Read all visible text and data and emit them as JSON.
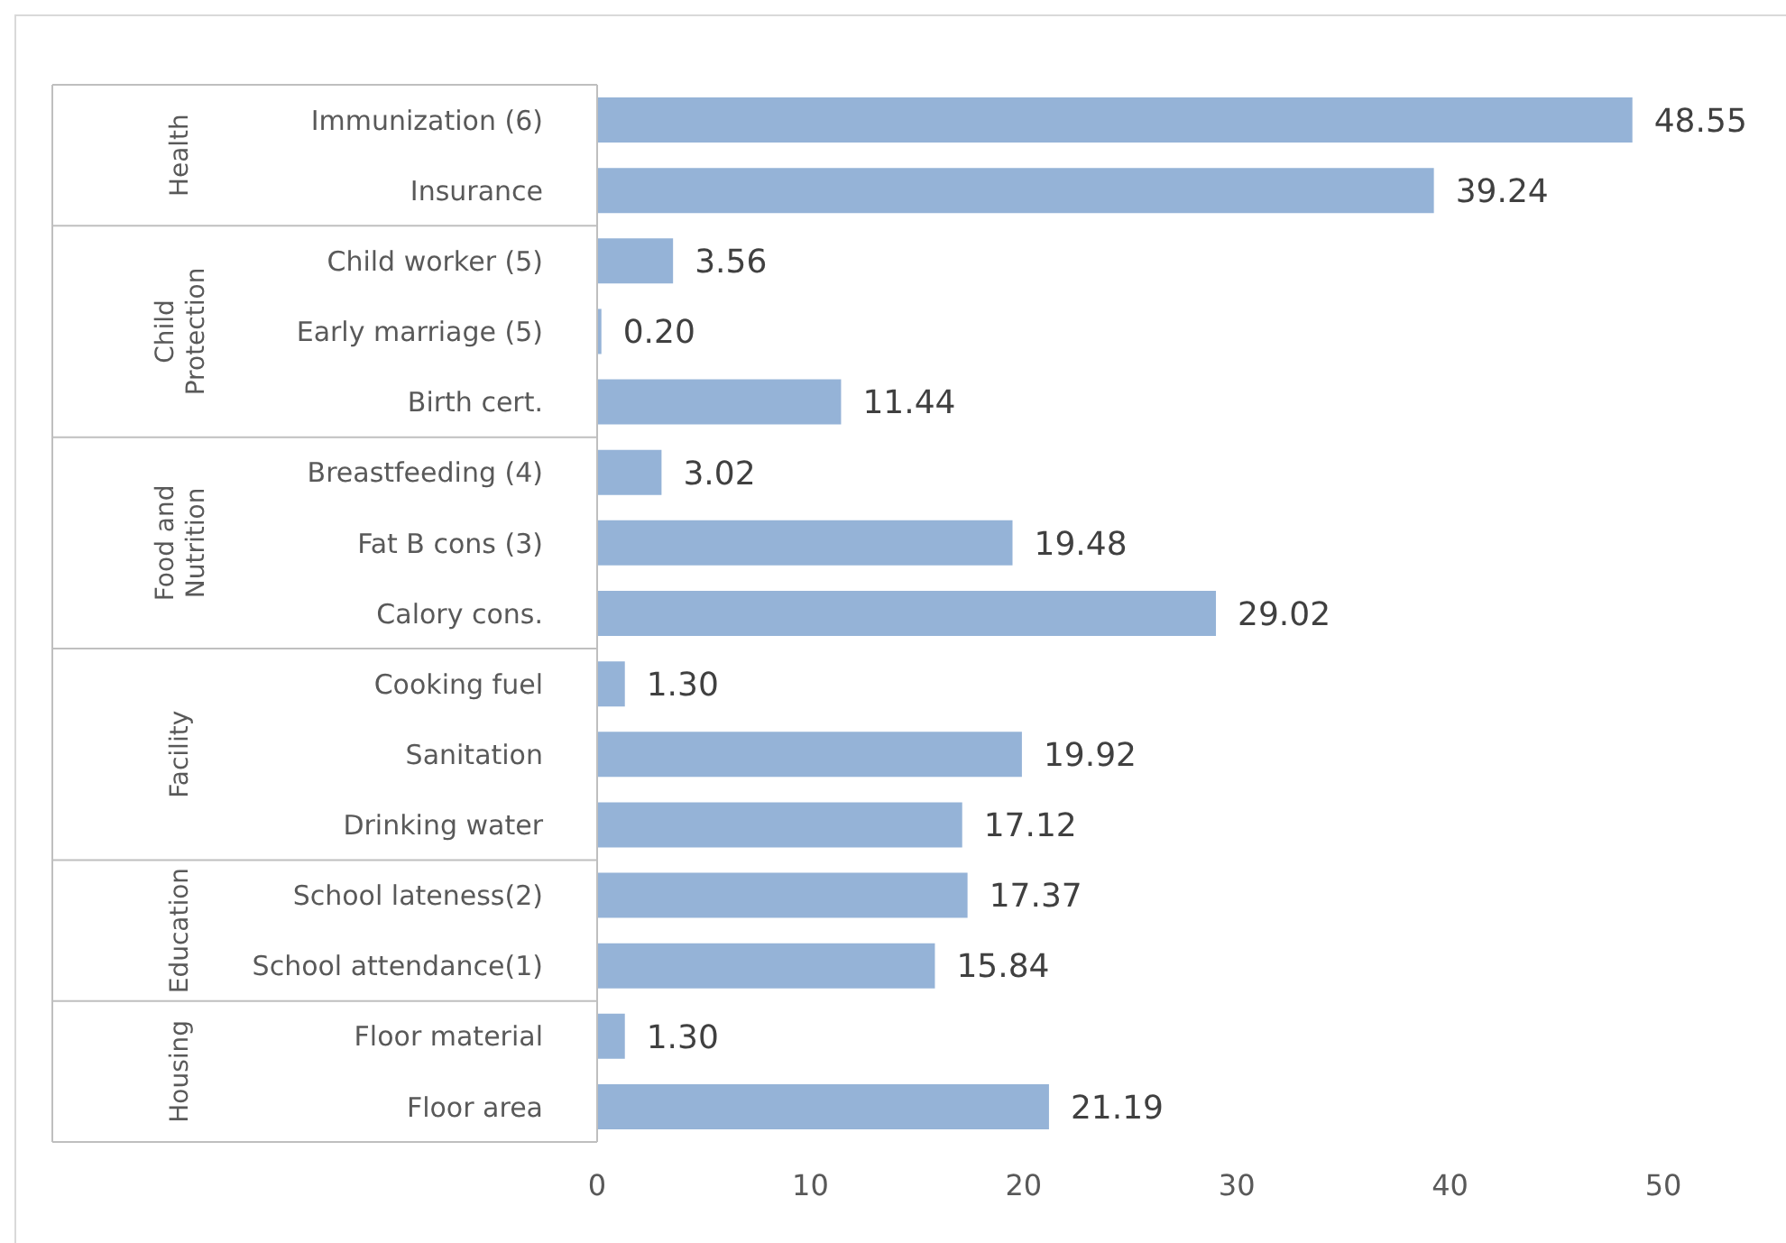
{
  "chart_data": {
    "type": "bar",
    "orientation": "horizontal",
    "categories": [
      "Immunization (6)",
      "Insurance",
      "Child worker (5)",
      "Early marriage (5)",
      "Birth cert.",
      "Breastfeeding (4)",
      "Fat B cons (3)",
      "Calory cons.",
      "Cooking fuel",
      "Sanitation",
      "Drinking water",
      "School lateness(2)",
      "School attendance(1)",
      "Floor material",
      "Floor area"
    ],
    "values": [
      48.55,
      39.24,
      3.56,
      0.2,
      11.44,
      3.02,
      19.48,
      29.02,
      1.3,
      19.92,
      17.12,
      17.37,
      15.84,
      1.3,
      21.19
    ],
    "value_labels": [
      "48.55",
      "39.24",
      "3.56",
      "0.20",
      "11.44",
      "3.02",
      "19.48",
      "29.02",
      "1.30",
      "19.92",
      "17.12",
      "17.37",
      "15.84",
      "1.30",
      "21.19"
    ],
    "color": "#95b3d7",
    "xlim": [
      0,
      50
    ],
    "xticks": [
      0,
      10,
      20,
      30,
      40,
      50
    ],
    "grid": false,
    "legend": false,
    "annotations": [
      "Health",
      "Child Protection",
      "Food and Nutrition",
      "Facility",
      "Education",
      "Housing"
    ]
  }
}
